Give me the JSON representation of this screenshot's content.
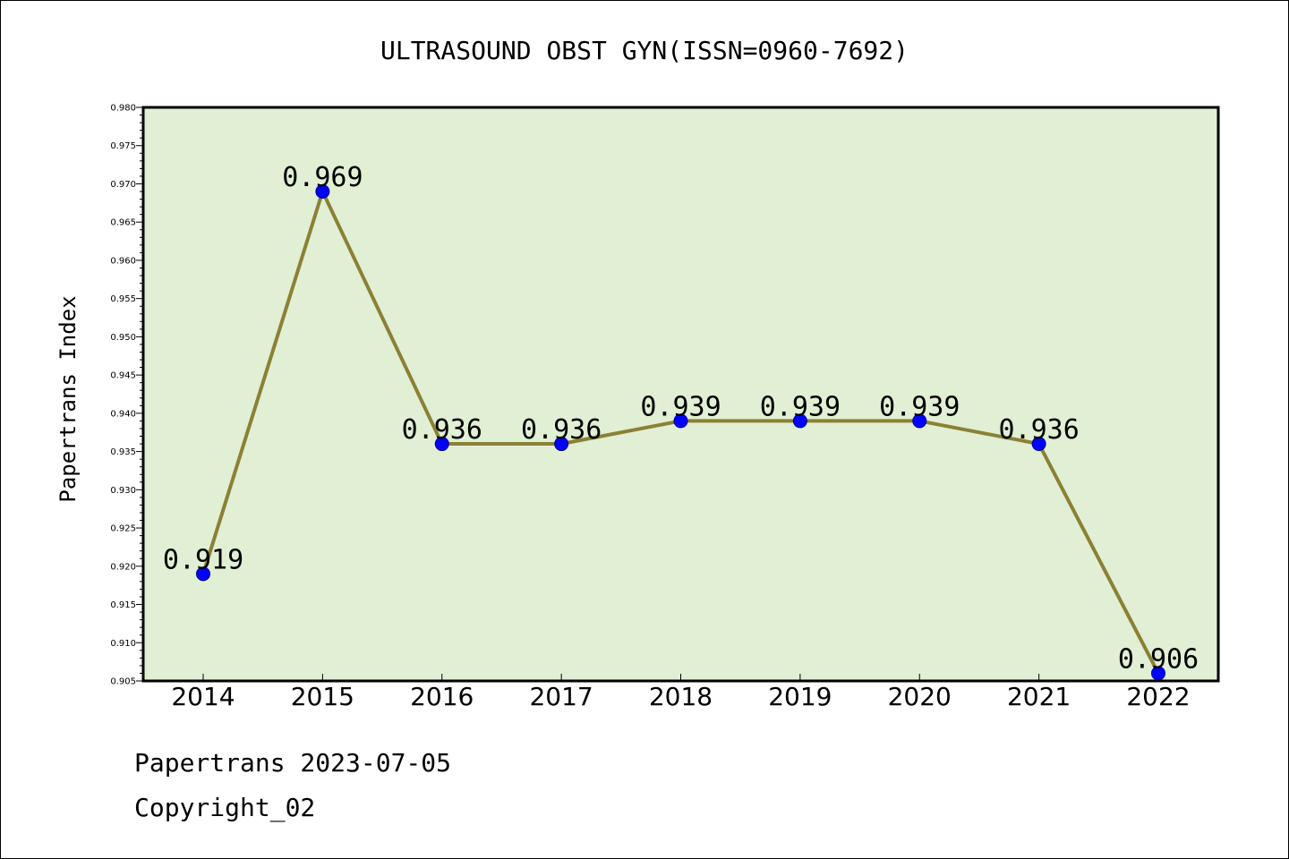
{
  "colors": {
    "plot_background": "#e1efd5",
    "line": "#8b8133",
    "marker": "#0000ff"
  },
  "chart_data": {
    "type": "line",
    "title": "ULTRASOUND OBST GYN(ISSN=0960-7692)",
    "xlabel": "",
    "ylabel": "Papertrans Index",
    "categories": [
      "2014",
      "2015",
      "2016",
      "2017",
      "2018",
      "2019",
      "2020",
      "2021",
      "2022"
    ],
    "series": [
      {
        "values": [
          0.919,
          0.969,
          0.936,
          0.936,
          0.939,
          0.939,
          0.939,
          0.936,
          0.906
        ]
      }
    ],
    "data_labels": [
      "0.919",
      "0.969",
      "0.936",
      "0.936",
      "0.939",
      "0.939",
      "0.939",
      "0.936",
      "0.906"
    ],
    "ylim": [
      0.905,
      0.98
    ],
    "yticks": [
      "0.905",
      "0.910",
      "0.915",
      "0.920",
      "0.925",
      "0.930",
      "0.935",
      "0.940",
      "0.945",
      "0.950",
      "0.955",
      "0.960",
      "0.965",
      "0.970",
      "0.975",
      "0.980"
    ],
    "grid": false,
    "legend": "none"
  },
  "footer": {
    "source": "Papertrans 2023-07-05",
    "copyright": "Copyright_02"
  }
}
